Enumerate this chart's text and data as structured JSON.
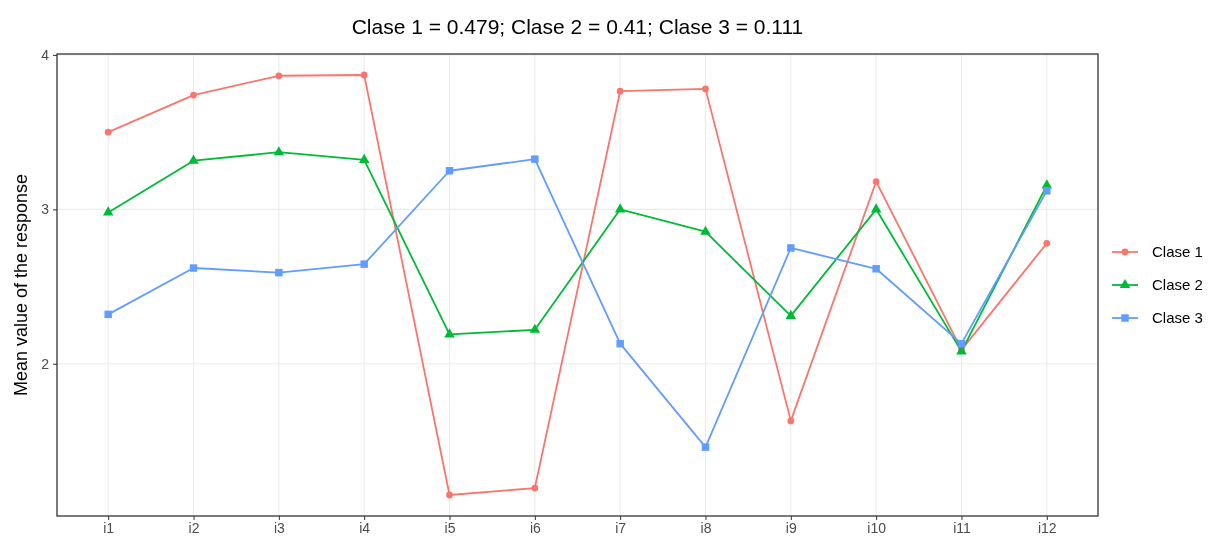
{
  "chart_data": {
    "type": "line",
    "title": "Clase 1 = 0.479; Clase 2 = 0.41; Clase 3 = 0.111",
    "ylabel": "Mean value of the response",
    "categories": [
      "i1",
      "i2",
      "i3",
      "i4",
      "i5",
      "i6",
      "i7",
      "i8",
      "i9",
      "i10",
      "i11",
      "i12"
    ],
    "series": [
      {
        "name": "Clase 1",
        "color": "#f8766d",
        "marker": "circle",
        "values": [
          3.5,
          3.74,
          3.865,
          3.87,
          1.15,
          1.195,
          3.765,
          3.78,
          1.63,
          3.18,
          2.09,
          2.78
        ]
      },
      {
        "name": "Clase 2",
        "color": "#00ba38",
        "marker": "triangle",
        "values": [
          2.98,
          3.315,
          3.37,
          3.32,
          2.19,
          2.22,
          3.0,
          2.855,
          2.31,
          3.0,
          2.08,
          3.155
        ]
      },
      {
        "name": "Clase 3",
        "color": "#619cff",
        "marker": "square",
        "values": [
          2.32,
          2.62,
          2.59,
          2.645,
          3.25,
          3.325,
          2.13,
          1.46,
          2.75,
          2.615,
          2.13,
          3.12
        ]
      }
    ],
    "ylim": [
      1.014,
      4.006
    ],
    "yticks": [
      2,
      3,
      4
    ],
    "grid": true,
    "legend": "right",
    "line_style": "solid"
  }
}
